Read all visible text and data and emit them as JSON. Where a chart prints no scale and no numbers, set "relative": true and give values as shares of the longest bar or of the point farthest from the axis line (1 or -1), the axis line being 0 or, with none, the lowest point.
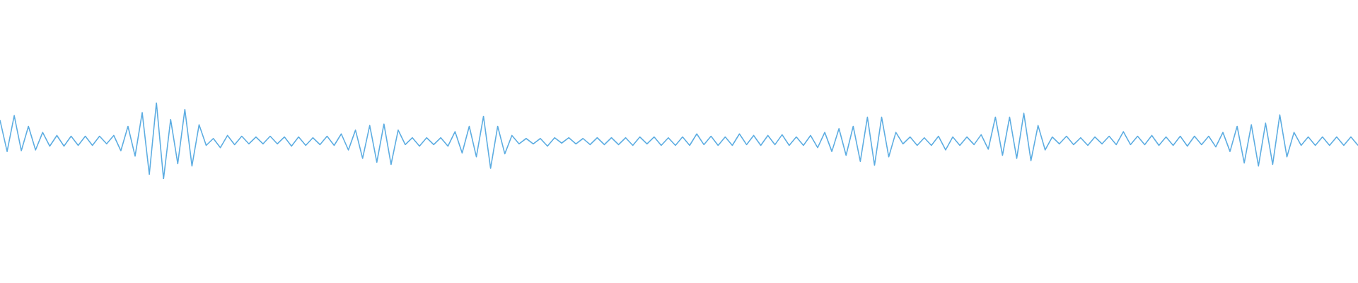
{
  "chart_data": {
    "type": "line",
    "relative": true,
    "color": "#5dade2",
    "categories": [
      null,
      null,
      null,
      null,
      null,
      null,
      null,
      null,
      null,
      null,
      null,
      null,
      null,
      null,
      null,
      null,
      null,
      null,
      null,
      null,
      null,
      null,
      null,
      null,
      null,
      null,
      null,
      null,
      null,
      null,
      null,
      null,
      null,
      null,
      null,
      null,
      null,
      null,
      null,
      null,
      null,
      null,
      null,
      null,
      null,
      null,
      null,
      null,
      null,
      null,
      null,
      null,
      null,
      null,
      null,
      null,
      null,
      null,
      null,
      null,
      null,
      null,
      null,
      null,
      null,
      null,
      null,
      null,
      null,
      null,
      null,
      null,
      null,
      null,
      null,
      null,
      null,
      null,
      null,
      null,
      null,
      null,
      null,
      null,
      null,
      null,
      null,
      null,
      null,
      null,
      null,
      null,
      null,
      null,
      null,
      null,
      null,
      null,
      null,
      null,
      null,
      null,
      null,
      null,
      null,
      null,
      null,
      null,
      null,
      null,
      null,
      null,
      null,
      null,
      null,
      null,
      null,
      null,
      null,
      null,
      null,
      null,
      null,
      null,
      null,
      null,
      null,
      null,
      null,
      null,
      null,
      null,
      null,
      null,
      null,
      null,
      null,
      null,
      null,
      null,
      null,
      null,
      null,
      null,
      null,
      null,
      null,
      null,
      null,
      null,
      null,
      null,
      null,
      null,
      null,
      null,
      null,
      null,
      null,
      null,
      null,
      null,
      null,
      null,
      null,
      null,
      null,
      null,
      null,
      null,
      null,
      null,
      null,
      null,
      null,
      null,
      null,
      null,
      null,
      null,
      null,
      null,
      null,
      null,
      null,
      null,
      null,
      null,
      null,
      null,
      null,
      null
    ],
    "values": [
      0.77,
      0.36,
      0.83,
      0.37,
      0.69,
      0.38,
      0.61,
      0.43,
      0.57,
      0.43,
      0.56,
      0.44,
      0.56,
      0.44,
      0.56,
      0.46,
      0.57,
      0.37,
      0.69,
      0.3,
      0.87,
      0.06,
      1.0,
      0.0,
      0.78,
      0.2,
      0.91,
      0.17,
      0.71,
      0.44,
      0.53,
      0.41,
      0.57,
      0.45,
      0.56,
      0.46,
      0.55,
      0.46,
      0.56,
      0.46,
      0.55,
      0.43,
      0.55,
      0.44,
      0.54,
      0.45,
      0.56,
      0.44,
      0.59,
      0.38,
      0.64,
      0.27,
      0.7,
      0.22,
      0.72,
      0.19,
      0.64,
      0.45,
      0.54,
      0.43,
      0.54,
      0.45,
      0.54,
      0.43,
      0.62,
      0.34,
      0.69,
      0.29,
      0.82,
      0.14,
      0.69,
      0.33,
      0.57,
      0.46,
      0.53,
      0.46,
      0.53,
      0.43,
      0.54,
      0.47,
      0.54,
      0.46,
      0.53,
      0.45,
      0.54,
      0.45,
      0.54,
      0.45,
      0.54,
      0.44,
      0.55,
      0.46,
      0.55,
      0.44,
      0.54,
      0.44,
      0.55,
      0.44,
      0.59,
      0.45,
      0.56,
      0.44,
      0.55,
      0.44,
      0.59,
      0.45,
      0.57,
      0.44,
      0.57,
      0.45,
      0.58,
      0.44,
      0.55,
      0.44,
      0.57,
      0.41,
      0.61,
      0.36,
      0.66,
      0.31,
      0.69,
      0.23,
      0.81,
      0.18,
      0.81,
      0.29,
      0.61,
      0.46,
      0.55,
      0.44,
      0.54,
      0.44,
      0.56,
      0.38,
      0.55,
      0.44,
      0.55,
      0.45,
      0.58,
      0.39,
      0.81,
      0.31,
      0.81,
      0.27,
      0.86,
      0.24,
      0.7,
      0.38,
      0.55,
      0.46,
      0.56,
      0.45,
      0.54,
      0.44,
      0.55,
      0.46,
      0.56,
      0.45,
      0.62,
      0.45,
      0.56,
      0.45,
      0.57,
      0.44,
      0.55,
      0.44,
      0.56,
      0.43,
      0.56,
      0.45,
      0.56,
      0.42,
      0.61,
      0.36,
      0.69,
      0.21,
      0.71,
      0.17,
      0.73,
      0.19,
      0.84,
      0.29,
      0.61,
      0.44,
      0.55,
      0.44,
      0.55,
      0.44,
      0.55,
      0.44,
      0.55,
      0.44
    ]
  }
}
